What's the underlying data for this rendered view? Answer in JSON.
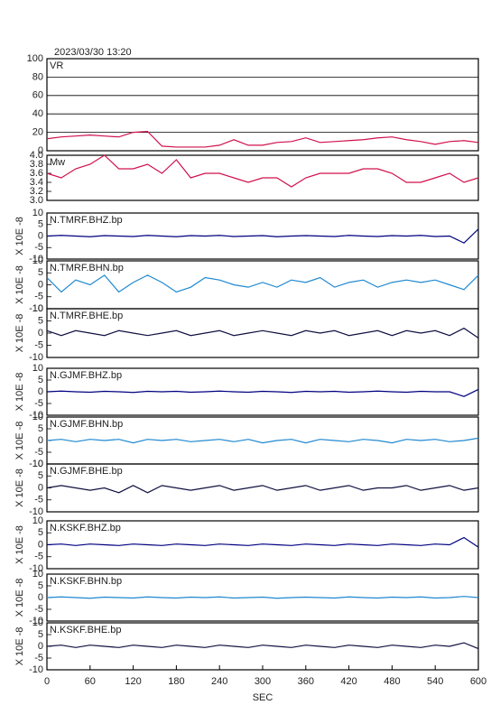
{
  "chart_data": {
    "type": "line",
    "title": "2023/03/30 13:20",
    "xlabel": "SEC",
    "xlim": [
      0,
      600
    ],
    "xticks": [
      0,
      60,
      120,
      180,
      240,
      300,
      360,
      420,
      480,
      540,
      600
    ],
    "x": [
      0,
      20,
      40,
      60,
      80,
      100,
      120,
      140,
      160,
      180,
      200,
      220,
      240,
      260,
      280,
      300,
      320,
      340,
      360,
      380,
      400,
      420,
      440,
      460,
      480,
      500,
      520,
      540,
      560,
      580,
      600
    ],
    "panels": [
      {
        "name": "VR",
        "color": "#d0104c",
        "grid": true,
        "ylim": [
          0,
          100
        ],
        "yticks": [
          0,
          20,
          40,
          60,
          80,
          100
        ],
        "values": [
          13,
          15,
          16,
          17,
          16,
          15,
          20,
          21,
          5,
          4,
          4,
          4,
          6,
          12,
          6,
          6,
          9,
          10,
          14,
          9,
          10,
          11,
          12,
          14,
          15,
          12,
          10,
          7,
          10,
          11,
          9
        ]
      },
      {
        "name": "Mw",
        "color": "#d0104c",
        "ylim": [
          3.0,
          4.0
        ],
        "yticks": [
          {
            "value": 3.0,
            "label": "3.0"
          },
          {
            "value": 3.2,
            "label": "3.2"
          },
          {
            "value": 3.4,
            "label": "3.4"
          },
          {
            "value": 3.6,
            "label": "3.6"
          },
          {
            "value": 3.8,
            "label": "3.8"
          },
          {
            "value": 4.0,
            "label": "4.0"
          }
        ],
        "values": [
          3.6,
          3.5,
          3.7,
          3.8,
          4.0,
          3.7,
          3.7,
          3.8,
          3.6,
          3.9,
          3.5,
          3.6,
          3.6,
          3.5,
          3.4,
          3.5,
          3.5,
          3.3,
          3.5,
          3.6,
          3.6,
          3.6,
          3.7,
          3.7,
          3.6,
          3.4,
          3.4,
          3.5,
          3.6,
          3.4,
          3.5
        ]
      },
      {
        "name": "N.TMRF.BHZ.bp",
        "ylabel": "X 10E -8",
        "color": "#000080",
        "ylim": [
          -10,
          10
        ],
        "yticks": [
          -10,
          -5,
          0,
          5,
          10
        ],
        "values": [
          0,
          0.3,
          0,
          -0.3,
          0.2,
          0,
          -0.2,
          0.3,
          0,
          -0.3,
          0.2,
          0,
          0.3,
          -0.2,
          0,
          0.2,
          -0.3,
          0,
          0.2,
          0,
          -0.2,
          0.3,
          0,
          -0.2,
          0.2,
          0,
          0.3,
          -0.2,
          0,
          -3,
          3
        ]
      },
      {
        "name": "N.TMRF.BHN.bp",
        "ylabel": "X 10E -8",
        "color": "#1e88d0",
        "ylim": [
          -10,
          10
        ],
        "yticks": [
          -10,
          -5,
          0,
          5,
          10
        ],
        "values": [
          3,
          -3,
          2,
          0,
          4,
          -3,
          1,
          4,
          1,
          -3,
          -1,
          3,
          2,
          0,
          -1,
          1,
          -1,
          2,
          1,
          3,
          -1,
          1,
          2,
          -1,
          1,
          2,
          1,
          2,
          0,
          -2,
          4
        ]
      },
      {
        "name": "N.TMRF.BHE.bp",
        "ylabel": "X 10E -8",
        "color": "#101040",
        "ylim": [
          -10,
          10
        ],
        "yticks": [
          -10,
          -5,
          0,
          5,
          10
        ],
        "values": [
          1,
          -1,
          1,
          0,
          -1,
          1,
          0,
          -1,
          0,
          1,
          -1,
          0,
          1,
          -1,
          0,
          1,
          0,
          -1,
          1,
          0,
          1,
          -1,
          0,
          1,
          -1,
          1,
          0,
          1,
          -1,
          2,
          -2
        ]
      },
      {
        "name": "N.GJMF.BHZ.bp",
        "ylabel": "X 10E -8",
        "color": "#000080",
        "ylim": [
          -10,
          10
        ],
        "yticks": [
          -10,
          -5,
          0,
          5,
          10
        ],
        "values": [
          0,
          0.3,
          0,
          -0.2,
          0.2,
          0,
          -0.3,
          0.2,
          0,
          0.2,
          -0.2,
          0,
          0.3,
          0,
          -0.2,
          0.2,
          0,
          -0.3,
          0.2,
          0,
          0.2,
          -0.2,
          0,
          0.3,
          0,
          -0.2,
          0.2,
          0,
          0,
          -2,
          1
        ]
      },
      {
        "name": "N.GJMF.BHN.bp",
        "ylabel": "X 10E -8",
        "color": "#1e88d0",
        "ylim": [
          -10,
          10
        ],
        "yticks": [
          -10,
          -5,
          0,
          5,
          10
        ],
        "values": [
          0,
          0.5,
          -0.5,
          0.5,
          0,
          0.5,
          -1,
          0.5,
          0,
          0.5,
          -0.5,
          0,
          0.5,
          -0.5,
          0.5,
          -1,
          0,
          0.5,
          -1,
          0.5,
          0,
          -0.5,
          0.5,
          0,
          -1,
          0.5,
          0,
          0.5,
          -0.5,
          0,
          1
        ]
      },
      {
        "name": "N.GJMF.BHE.bp",
        "ylabel": "X 10E -8",
        "color": "#101040",
        "ylim": [
          -10,
          10
        ],
        "yticks": [
          -10,
          -5,
          0,
          5,
          10
        ],
        "values": [
          0,
          1,
          0,
          -1,
          0,
          -2,
          1,
          -2,
          1,
          0,
          -1,
          0,
          1,
          -1,
          0,
          1,
          -1,
          0,
          1,
          -1,
          0,
          1,
          -1,
          0,
          0,
          1,
          -1,
          0,
          1,
          -1,
          0
        ]
      },
      {
        "name": "N.KSKF.BHZ.bp",
        "ylabel": "X 10E -8",
        "color": "#000080",
        "ylim": [
          -10,
          10
        ],
        "yticks": [
          -10,
          -5,
          0,
          5,
          10
        ],
        "values": [
          0,
          0.3,
          -0.3,
          0.3,
          0,
          -0.3,
          0.3,
          0,
          -0.3,
          0.3,
          0,
          -0.3,
          0.3,
          0,
          -0.3,
          0.3,
          0,
          -0.3,
          0.3,
          0,
          -0.3,
          0.3,
          0,
          -0.3,
          0.3,
          0,
          -0.3,
          0.3,
          0,
          3,
          -1
        ]
      },
      {
        "name": "N.KSKF.BHN.bp",
        "ylabel": "X 10E -8",
        "color": "#1e88d0",
        "ylim": [
          -10,
          10
        ],
        "yticks": [
          -10,
          -5,
          0,
          5,
          10
        ],
        "values": [
          0,
          0.3,
          0,
          -0.3,
          0.2,
          0,
          -0.2,
          0.3,
          0,
          -0.2,
          0.2,
          0,
          0.3,
          -0.2,
          0,
          0.2,
          -0.3,
          0,
          0.2,
          0,
          -0.2,
          0.3,
          0,
          -0.2,
          0.2,
          0,
          0.3,
          -0.2,
          0,
          0.5,
          0
        ]
      },
      {
        "name": "N.KSKF.BHE.bp",
        "ylabel": "X 10E -8",
        "color": "#101040",
        "ylim": [
          -10,
          10
        ],
        "yticks": [
          -10,
          -5,
          0,
          5,
          10
        ],
        "values": [
          0,
          0.5,
          -0.5,
          0.5,
          0,
          -0.5,
          0.5,
          0,
          -0.5,
          0.5,
          0,
          -0.5,
          0.5,
          0,
          -0.5,
          0.5,
          0,
          -0.5,
          0.5,
          0,
          -0.5,
          0.5,
          0,
          -0.5,
          0.5,
          0,
          -0.5,
          0.5,
          0,
          1.5,
          -1
        ]
      }
    ]
  }
}
